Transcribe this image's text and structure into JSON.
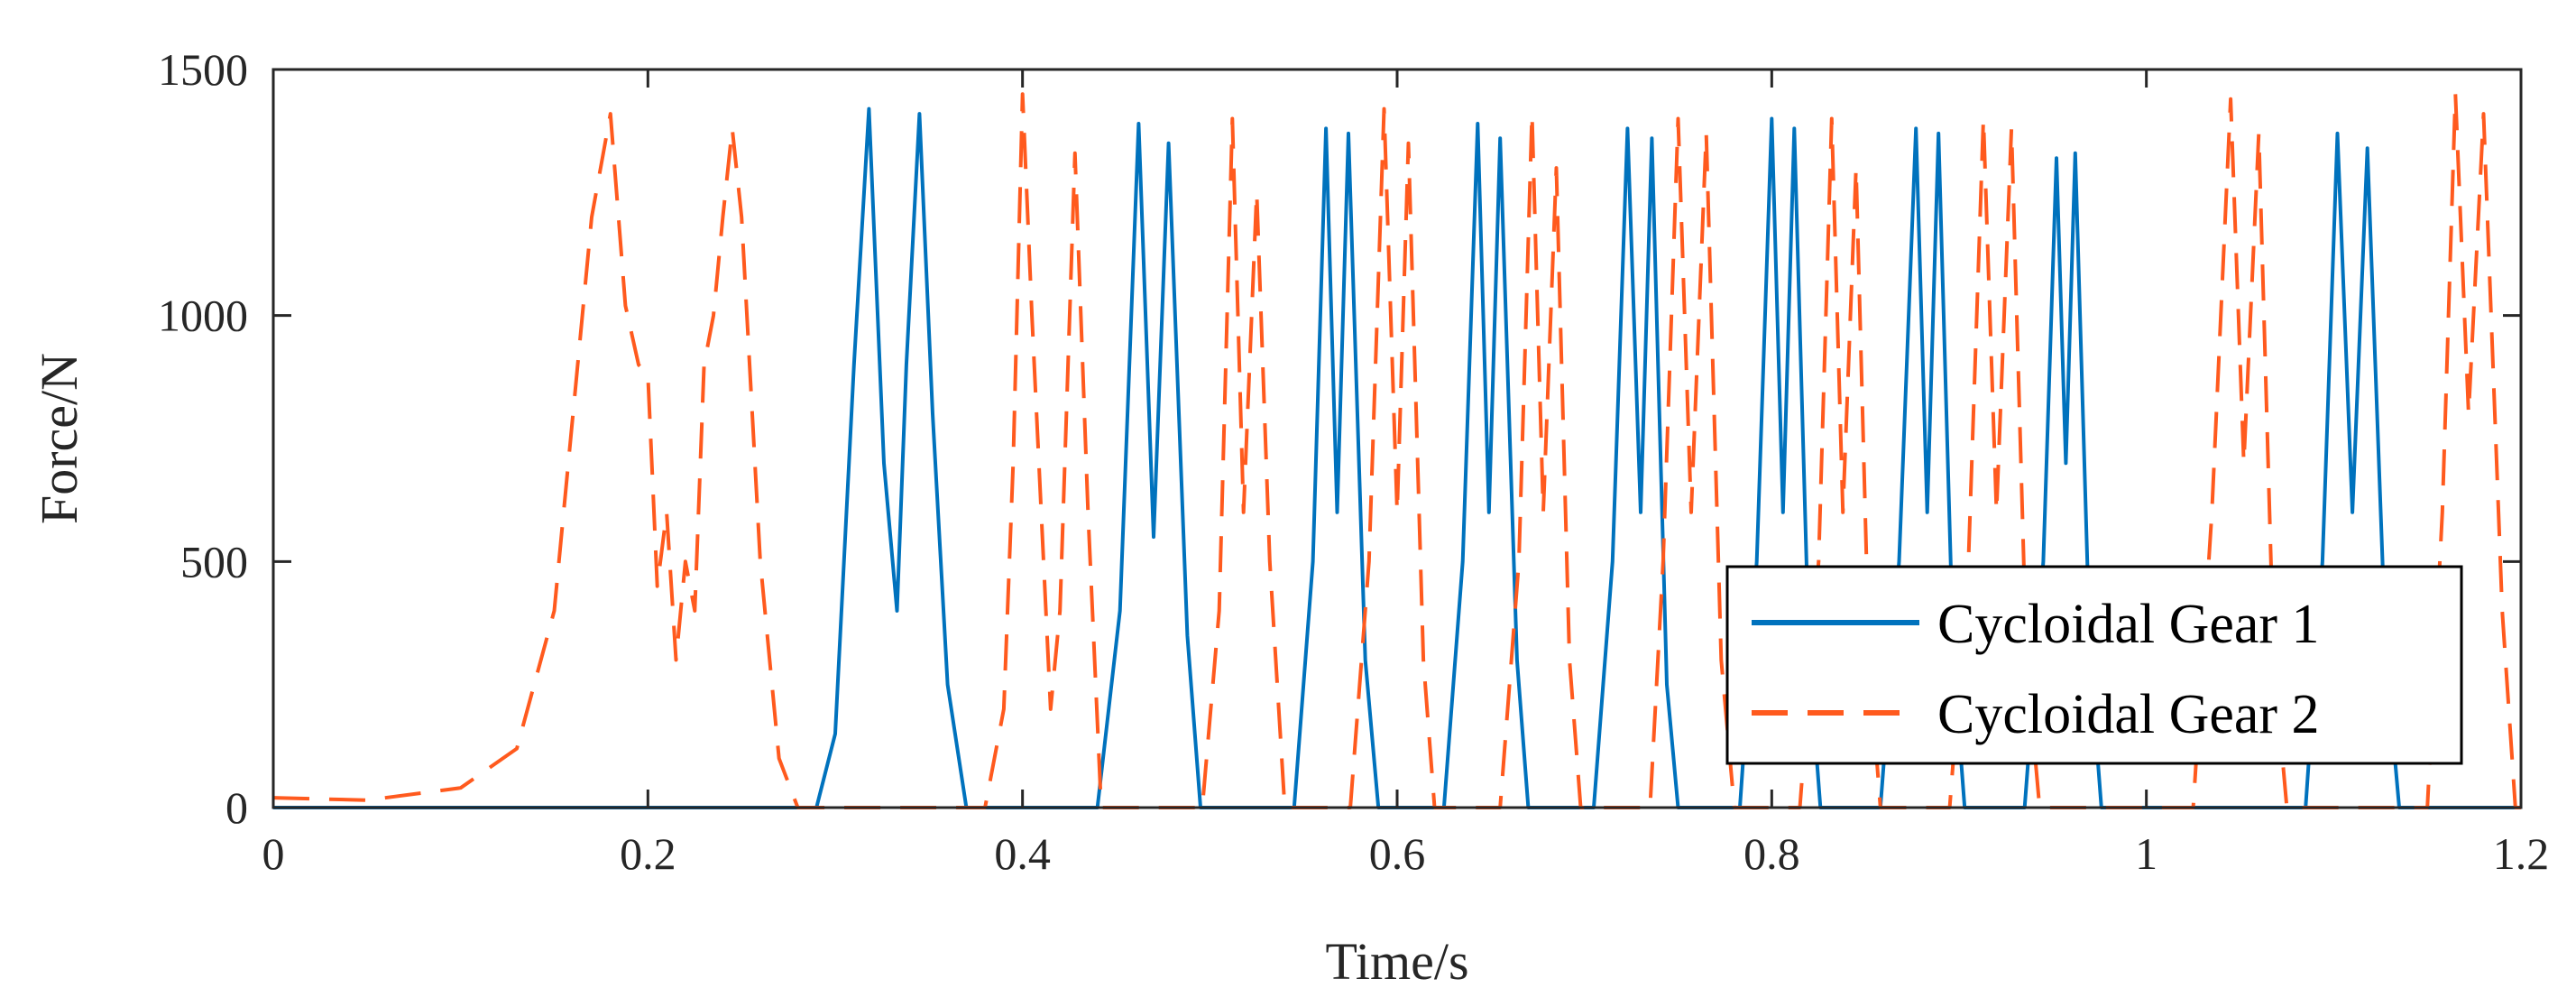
{
  "chart_data": {
    "type": "line",
    "title": "",
    "xlabel": "Time/s",
    "ylabel": "Force/N",
    "xlim": [
      0,
      1.2
    ],
    "ylim": [
      0,
      1500
    ],
    "xticks": [
      0,
      0.2,
      0.4,
      0.6,
      0.8,
      1,
      1.2
    ],
    "xtick_labels": [
      "0",
      "0.2",
      "0.4",
      "0.6",
      "0.8",
      "1",
      "1.2"
    ],
    "yticks": [
      0,
      500,
      1000,
      1500
    ],
    "ytick_labels": [
      "0",
      "500",
      "1000",
      "1500"
    ],
    "grid": false,
    "legend_position": "bottom-right",
    "series": [
      {
        "name": "Cycloidal Gear 1",
        "color": "#0072BD",
        "line_style": "solid",
        "points": [
          [
            0,
            0
          ],
          [
            0.29,
            0
          ],
          [
            0.3,
            150
          ],
          [
            0.31,
            900
          ],
          [
            0.318,
            1420
          ],
          [
            0.326,
            700
          ],
          [
            0.333,
            400
          ],
          [
            0.338,
            900
          ],
          [
            0.345,
            1410
          ],
          [
            0.352,
            800
          ],
          [
            0.36,
            250
          ],
          [
            0.37,
            0
          ],
          [
            0.44,
            0
          ],
          [
            0.452,
            400
          ],
          [
            0.462,
            1390
          ],
          [
            0.47,
            550
          ],
          [
            0.478,
            1350
          ],
          [
            0.488,
            350
          ],
          [
            0.495,
            0
          ],
          [
            0.545,
            0
          ],
          [
            0.555,
            500
          ],
          [
            0.562,
            1380
          ],
          [
            0.568,
            600
          ],
          [
            0.574,
            1370
          ],
          [
            0.583,
            300
          ],
          [
            0.59,
            0
          ],
          [
            0.625,
            0
          ],
          [
            0.635,
            500
          ],
          [
            0.643,
            1390
          ],
          [
            0.649,
            600
          ],
          [
            0.655,
            1360
          ],
          [
            0.664,
            300
          ],
          [
            0.67,
            0
          ],
          [
            0.705,
            0
          ],
          [
            0.715,
            500
          ],
          [
            0.723,
            1380
          ],
          [
            0.73,
            600
          ],
          [
            0.736,
            1360
          ],
          [
            0.744,
            250
          ],
          [
            0.75,
            0
          ],
          [
            0.783,
            0
          ],
          [
            0.792,
            500
          ],
          [
            0.8,
            1400
          ],
          [
            0.806,
            600
          ],
          [
            0.812,
            1380
          ],
          [
            0.82,
            300
          ],
          [
            0.826,
            0
          ],
          [
            0.858,
            0
          ],
          [
            0.868,
            500
          ],
          [
            0.877,
            1380
          ],
          [
            0.883,
            600
          ],
          [
            0.889,
            1370
          ],
          [
            0.897,
            300
          ],
          [
            0.903,
            0
          ],
          [
            0.935,
            0
          ],
          [
            0.945,
            500
          ],
          [
            0.952,
            1320
          ],
          [
            0.957,
            700
          ],
          [
            0.962,
            1330
          ],
          [
            0.97,
            300
          ],
          [
            0.976,
            0
          ],
          [
            1.085,
            0
          ],
          [
            1.094,
            500
          ],
          [
            1.102,
            1370
          ],
          [
            1.11,
            600
          ],
          [
            1.118,
            1340
          ],
          [
            1.128,
            300
          ],
          [
            1.135,
            0
          ],
          [
            1.2,
            0
          ]
        ]
      },
      {
        "name": "Cycloidal Gear 2",
        "color": "#FF5A1E",
        "line_style": "dashed",
        "points": [
          [
            0,
            20
          ],
          [
            0.05,
            15
          ],
          [
            0.1,
            40
          ],
          [
            0.13,
            120
          ],
          [
            0.15,
            400
          ],
          [
            0.16,
            800
          ],
          [
            0.17,
            1200
          ],
          [
            0.18,
            1410
          ],
          [
            0.188,
            1020
          ],
          [
            0.195,
            900
          ],
          [
            0.2,
            880
          ],
          [
            0.205,
            450
          ],
          [
            0.21,
            600
          ],
          [
            0.215,
            300
          ],
          [
            0.22,
            500
          ],
          [
            0.225,
            400
          ],
          [
            0.23,
            900
          ],
          [
            0.235,
            1000
          ],
          [
            0.24,
            1200
          ],
          [
            0.245,
            1380
          ],
          [
            0.25,
            1200
          ],
          [
            0.26,
            500
          ],
          [
            0.27,
            100
          ],
          [
            0.28,
            0
          ],
          [
            0.38,
            0
          ],
          [
            0.39,
            200
          ],
          [
            0.395,
            700
          ],
          [
            0.4,
            1450
          ],
          [
            0.405,
            1000
          ],
          [
            0.41,
            600
          ],
          [
            0.415,
            200
          ],
          [
            0.42,
            400
          ],
          [
            0.428,
            1330
          ],
          [
            0.435,
            600
          ],
          [
            0.442,
            0
          ],
          [
            0.496,
            0
          ],
          [
            0.505,
            400
          ],
          [
            0.512,
            1400
          ],
          [
            0.518,
            600
          ],
          [
            0.525,
            1250
          ],
          [
            0.532,
            500
          ],
          [
            0.54,
            0
          ],
          [
            0.575,
            0
          ],
          [
            0.585,
            500
          ],
          [
            0.593,
            1420
          ],
          [
            0.6,
            600
          ],
          [
            0.606,
            1350
          ],
          [
            0.614,
            300
          ],
          [
            0.62,
            0
          ],
          [
            0.655,
            0
          ],
          [
            0.665,
            500
          ],
          [
            0.672,
            1410
          ],
          [
            0.678,
            600
          ],
          [
            0.685,
            1300
          ],
          [
            0.692,
            300
          ],
          [
            0.698,
            0
          ],
          [
            0.735,
            0
          ],
          [
            0.742,
            500
          ],
          [
            0.75,
            1400
          ],
          [
            0.757,
            600
          ],
          [
            0.765,
            1370
          ],
          [
            0.773,
            300
          ],
          [
            0.78,
            0
          ],
          [
            0.815,
            0
          ],
          [
            0.825,
            500
          ],
          [
            0.832,
            1400
          ],
          [
            0.838,
            600
          ],
          [
            0.845,
            1300
          ],
          [
            0.852,
            300
          ],
          [
            0.858,
            0
          ],
          [
            0.895,
            0
          ],
          [
            0.905,
            500
          ],
          [
            0.913,
            1400
          ],
          [
            0.92,
            600
          ],
          [
            0.928,
            1380
          ],
          [
            0.936,
            300
          ],
          [
            0.943,
            0
          ],
          [
            1.025,
            0
          ],
          [
            1.035,
            600
          ],
          [
            1.045,
            1440
          ],
          [
            1.052,
            700
          ],
          [
            1.06,
            1370
          ],
          [
            1.068,
            300
          ],
          [
            1.075,
            0
          ],
          [
            1.15,
            0
          ],
          [
            1.158,
            600
          ],
          [
            1.165,
            1450
          ],
          [
            1.172,
            800
          ],
          [
            1.18,
            1410
          ],
          [
            1.19,
            400
          ],
          [
            1.197,
            0
          ],
          [
            1.2,
            0
          ]
        ]
      }
    ]
  }
}
